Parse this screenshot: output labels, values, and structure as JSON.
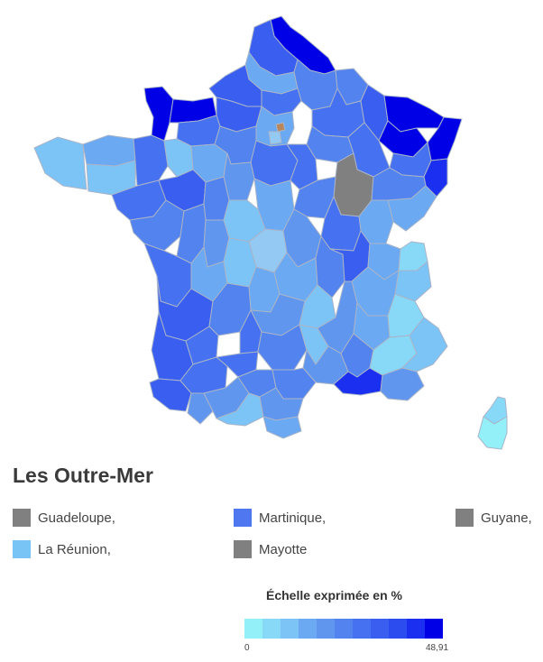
{
  "map": {
    "colors": {
      "border": "#a9b4c8",
      "no_data": "#808080",
      "darkest": "#0000e6"
    }
  },
  "outre_mer": {
    "title": "Les Outre-Mer",
    "items": [
      {
        "label": "Guadeloupe,",
        "color": "#808080"
      },
      {
        "label": "Martinique,",
        "color": "#4f77f0"
      },
      {
        "label": "Guyane,",
        "color": "#808080"
      },
      {
        "label": "La Réunion,",
        "color": "#77c4f5"
      },
      {
        "label": "Mayotte",
        "color": "#808080"
      }
    ]
  },
  "scale": {
    "title": "Échelle exprimée en %",
    "min_label": "0",
    "max_label": "48,91",
    "colors": [
      "#93f0f8",
      "#88d8f8",
      "#7cc3f6",
      "#6ba9f2",
      "#6196ee",
      "#5283ee",
      "#4671f0",
      "#3a5ff0",
      "#2d4cf0",
      "#1a2ff0",
      "#0000e6"
    ]
  }
}
